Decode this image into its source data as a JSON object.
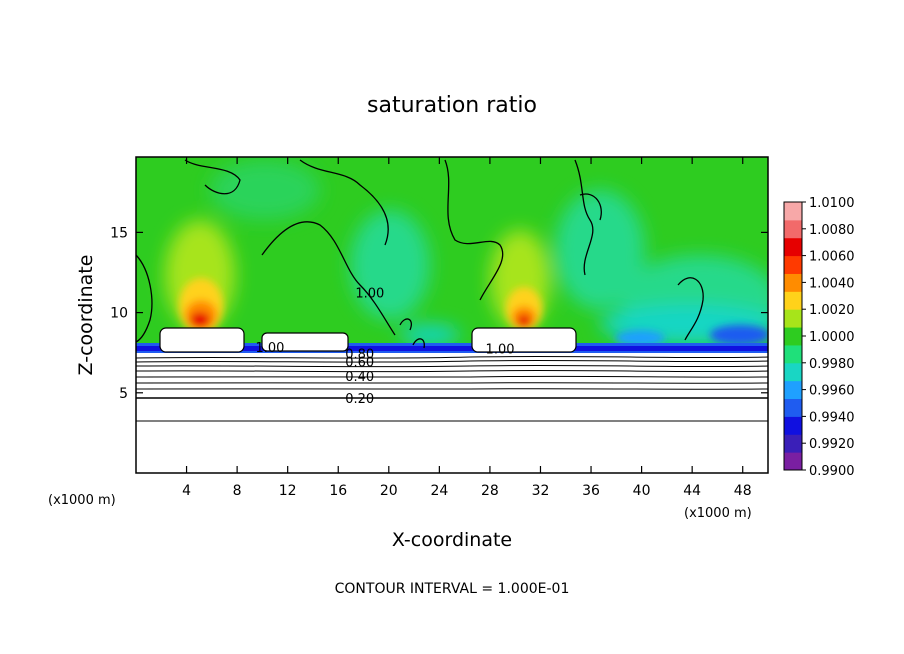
{
  "chart_data": {
    "type": "heatmap",
    "title": "saturation ratio",
    "xlabel": "X-coordinate",
    "ylabel": "Z-coordinate",
    "x_unit": "(x1000 m)",
    "y_unit": "(x1000 m)",
    "xlim": [
      0,
      50
    ],
    "ylim": [
      0,
      19.7
    ],
    "x_ticks": [
      4,
      8,
      12,
      16,
      20,
      24,
      28,
      32,
      36,
      40,
      44,
      48
    ],
    "y_ticks": [
      5,
      10,
      15
    ],
    "colorbar": {
      "min": 0.99,
      "max": 1.01,
      "ticks": [
        "1.0100",
        "1.0080",
        "1.0060",
        "1.0040",
        "1.0020",
        "1.0000",
        "0.9980",
        "0.9960",
        "0.9940",
        "0.9920",
        "0.9900"
      ],
      "colors": [
        "#7a1fa2",
        "#3a1fb8",
        "#1010e0",
        "#1f5cf0",
        "#1fa0ff",
        "#19d6c4",
        "#1fe07a",
        "#2ecc20",
        "#a7e41a",
        "#ffd21a",
        "#ff8c00",
        "#ff3a00",
        "#e60000",
        "#f26a6a",
        "#f7a8a8"
      ]
    },
    "contour_labels": [
      {
        "text": "1.00",
        "x": 18.5,
        "z": 11.2
      },
      {
        "text": "1.00",
        "x": 10.6,
        "z": 7.8
      },
      {
        "text": "1.00",
        "x": 28.8,
        "z": 7.7
      },
      {
        "text": "0.80",
        "x": 17.7,
        "z": 7.4
      },
      {
        "text": "0.60",
        "x": 17.7,
        "z": 6.9
      },
      {
        "text": "0.40",
        "x": 17.7,
        "z": 6.0
      },
      {
        "text": "0.20",
        "x": 17.7,
        "z": 4.6
      }
    ],
    "footnote": "CONTOUR INTERVAL = 1.000E-01",
    "grid": false,
    "legend": "colorbar-right"
  }
}
